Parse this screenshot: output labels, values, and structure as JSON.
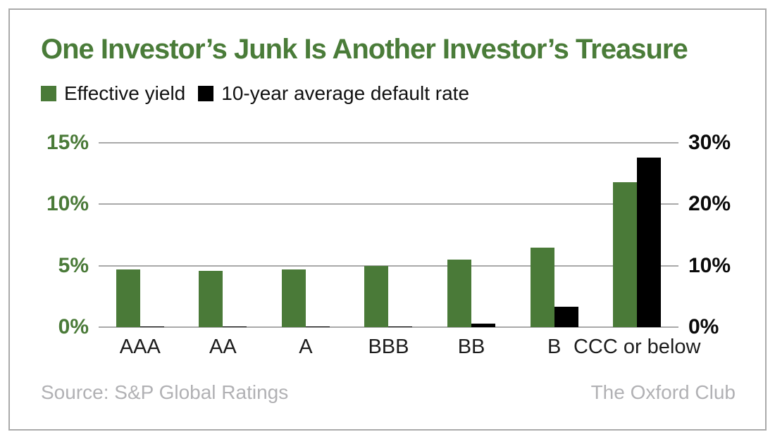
{
  "title": "One Investor’s Junk Is Another Investor’s Treasure",
  "colors": {
    "green": "#4a7a38",
    "black": "#000000",
    "title_green": "#4a7c39",
    "gridline": "#a9a9a9",
    "muted_gray": "#b1b1b4"
  },
  "legend": {
    "items": [
      {
        "label": "Effective yield",
        "color": "#4a7a38"
      },
      {
        "label": "10-year average default rate",
        "color": "#000000"
      }
    ]
  },
  "chart_data": {
    "type": "bar",
    "categories": [
      "AAA",
      "AA",
      "A",
      "BBB",
      "BB",
      "B",
      "CCC or below"
    ],
    "series": [
      {
        "name": "Effective yield",
        "axis": "left",
        "color": "#4a7a38",
        "values": [
          4.7,
          4.6,
          4.7,
          5.0,
          5.5,
          6.5,
          11.8
        ]
      },
      {
        "name": "10-year average default rate",
        "axis": "right",
        "color": "#000000",
        "values": [
          0.0,
          0.0,
          0.0,
          0.1,
          0.6,
          3.3,
          27.6
        ]
      }
    ],
    "left_axis": {
      "max": 15,
      "ticks": [
        {
          "label": "0%",
          "value": 0
        },
        {
          "label": "5%",
          "value": 5
        },
        {
          "label": "10%",
          "value": 10
        },
        {
          "label": "15%",
          "value": 15
        }
      ]
    },
    "right_axis": {
      "max": 30,
      "ticks": [
        {
          "label": "0%",
          "value": 0
        },
        {
          "label": "10%",
          "value": 10
        },
        {
          "label": "20%",
          "value": 20
        },
        {
          "label": "30%",
          "value": 30
        }
      ]
    },
    "grid": true,
    "legend_position": "top-left"
  },
  "footer": {
    "source": "Source: S&P Global Ratings",
    "credit": "The Oxford Club"
  }
}
